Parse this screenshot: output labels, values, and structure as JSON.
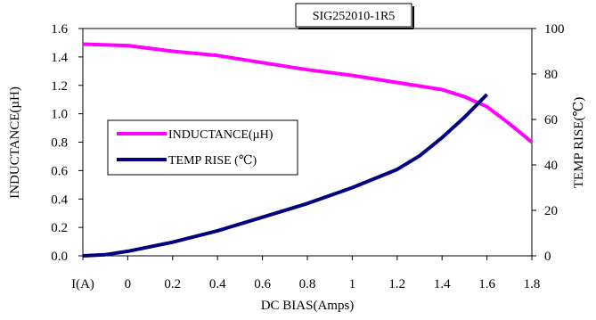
{
  "chart_data": {
    "type": "line",
    "title": "SIG252010-1R5",
    "xlabel": "DC BIAS(Amps)",
    "ylabel_left": "INDUCTANCE(µH)",
    "ylabel_right": "TEMP RISE(℃)",
    "x_tick_labels": [
      "I(A)",
      "0",
      "0.2",
      "0.4",
      "0.6",
      "0.8",
      "1",
      "1.2",
      "1.4",
      "1.6",
      "1.8"
    ],
    "xlim": [
      -0.2,
      1.8
    ],
    "ylim_left": [
      0.0,
      1.6
    ],
    "ylim_right": [
      0,
      100
    ],
    "y_ticks_left": [
      "0.0",
      "0.2",
      "0.4",
      "0.6",
      "0.8",
      "1.0",
      "1.2",
      "1.4",
      "1.6"
    ],
    "y_ticks_right": [
      "0",
      "20",
      "40",
      "60",
      "80",
      "100"
    ],
    "legend_position": "middle-left",
    "series": [
      {
        "name": "INDUCTANCE(µH)",
        "axis": "left",
        "color": "#ff00ff",
        "x": [
          -0.2,
          0.0,
          0.2,
          0.4,
          0.6,
          0.8,
          1.0,
          1.2,
          1.4,
          1.5,
          1.6,
          1.7,
          1.8
        ],
        "y": [
          1.49,
          1.48,
          1.44,
          1.41,
          1.36,
          1.31,
          1.27,
          1.22,
          1.17,
          1.12,
          1.05,
          0.93,
          0.8
        ]
      },
      {
        "name": "TEMP RISE (℃)",
        "axis": "right",
        "color": "#000080",
        "x": [
          -0.2,
          -0.1,
          0.0,
          0.2,
          0.4,
          0.6,
          0.8,
          1.0,
          1.2,
          1.3,
          1.4,
          1.5,
          1.6
        ],
        "y": [
          0,
          0.5,
          2,
          6,
          11,
          17,
          23,
          30,
          38,
          44,
          52,
          61,
          71
        ]
      }
    ]
  }
}
